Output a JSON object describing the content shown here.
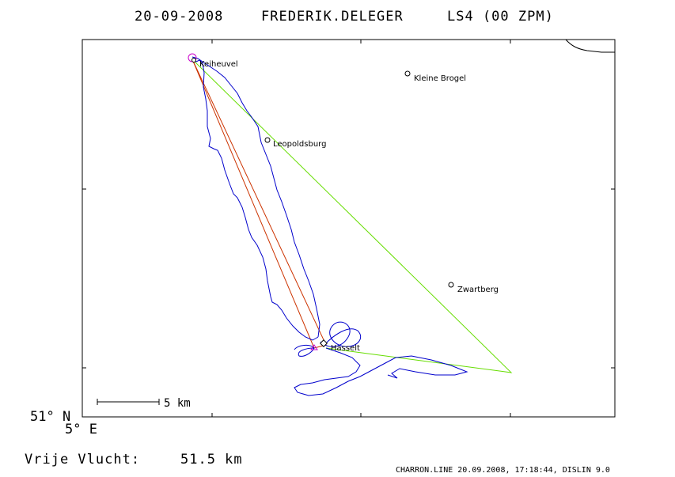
{
  "header": {
    "date": "20-09-2008",
    "pilot": "FREDERIK.DELEGER",
    "task": "LS4 (00 ZPM)"
  },
  "map": {
    "places": [
      {
        "id": "keiheuvel",
        "name": "Keiheuvel"
      },
      {
        "id": "kleine-brogel",
        "name": "Kleine Brogel"
      },
      {
        "id": "leopoldsburg",
        "name": "Leopoldsburg"
      },
      {
        "id": "zwartberg",
        "name": "Zwartberg"
      },
      {
        "id": "hasselt",
        "name": "Hasselt"
      }
    ],
    "colors": {
      "frame": "#000000",
      "track": "#0000cc",
      "task_leg": "#cc3300",
      "other_leg": "#66dd00",
      "start_marker": "#cc00cc"
    }
  },
  "coords": {
    "lat_label": "51° N",
    "lon_label": "5° E"
  },
  "scale": {
    "label": "5 km"
  },
  "distance": {
    "label": "Vrije Vlucht:",
    "value": "51.5 km"
  },
  "footer": {
    "text": "CHARRON.LINE 20.09.2008, 17:18:44, DISLIN 9.0"
  }
}
